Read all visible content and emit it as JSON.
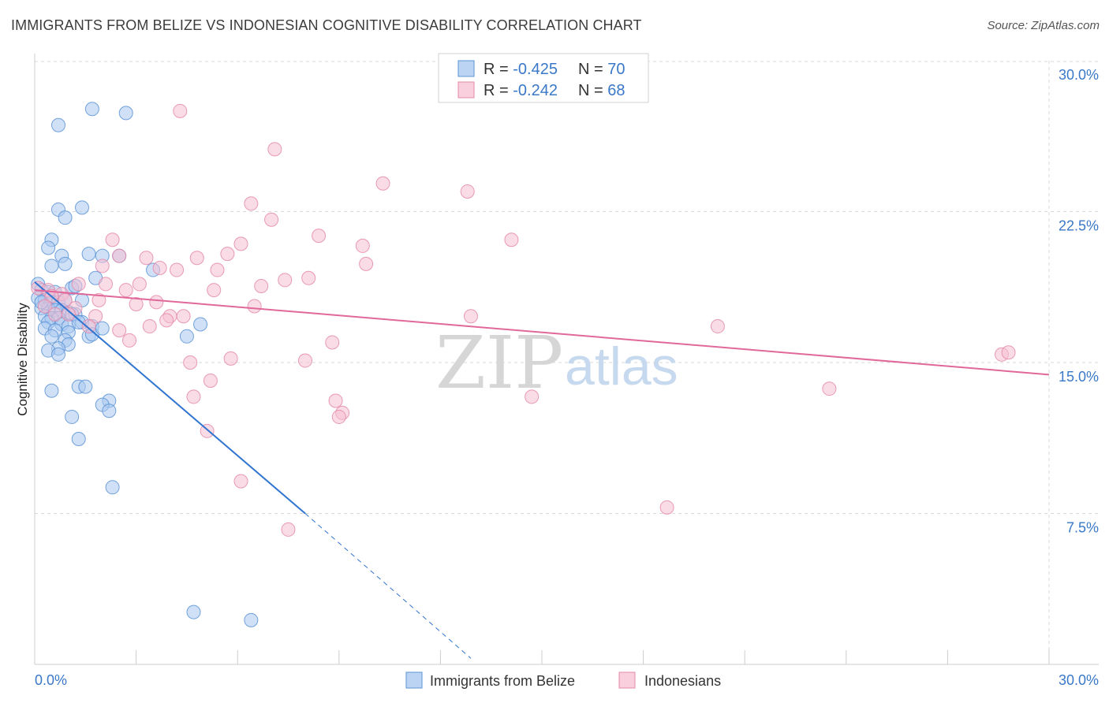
{
  "title": "IMMIGRANTS FROM BELIZE VS INDONESIAN COGNITIVE DISABILITY CORRELATION CHART",
  "source": "Source: ZipAtlas.com",
  "watermark": {
    "zip": "ZIP",
    "atlas": "atlas"
  },
  "colors": {
    "blue_fill": "#a9c8f0",
    "blue_stroke": "#5b93d6",
    "blue_line": "#2f74d0",
    "pink_fill": "#f6bfd1",
    "pink_stroke": "#e48aaa",
    "pink_line": "#e0689a",
    "grid": "#d9d9d9",
    "axis_text": "#3a78c8"
  },
  "legend": {
    "rows": [
      {
        "r_label": "R = ",
        "r_value": "-0.425",
        "n_label": "N = ",
        "n_value": "70"
      },
      {
        "r_label": "R = ",
        "r_value": "-0.242",
        "n_label": "N = ",
        "n_value": "68"
      }
    ]
  },
  "chart_data": {
    "type": "scatter",
    "ylabel": "Cognitive Disability",
    "xlim": [
      0,
      30
    ],
    "ylim": [
      0,
      30
    ],
    "x_tick_labels": [
      "0.0%",
      "30.0%"
    ],
    "y_ticks": [
      7.5,
      15.0,
      22.5,
      30.0
    ],
    "y_tick_labels": [
      "7.5%",
      "15.0%",
      "22.5%",
      "30.0%"
    ],
    "grid": true,
    "series": [
      {
        "name": "Immigrants from Belize",
        "r": -0.425,
        "n": 70,
        "trend": {
          "x0": 0.0,
          "y0": 19.0,
          "x1": 8.0,
          "y1": 7.5,
          "dash_to_x": 12.9,
          "dash_to_y": 0.3
        },
        "points": [
          [
            1.7,
            27.6
          ],
          [
            0.7,
            26.8
          ],
          [
            2.7,
            27.4
          ],
          [
            0.7,
            22.6
          ],
          [
            1.4,
            22.7
          ],
          [
            0.9,
            22.2
          ],
          [
            0.5,
            21.1
          ],
          [
            0.4,
            20.7
          ],
          [
            1.6,
            20.4
          ],
          [
            0.8,
            20.3
          ],
          [
            2.0,
            20.3
          ],
          [
            2.5,
            20.3
          ],
          [
            0.5,
            19.8
          ],
          [
            0.9,
            19.9
          ],
          [
            3.5,
            19.6
          ],
          [
            1.8,
            19.2
          ],
          [
            0.1,
            18.9
          ],
          [
            0.2,
            18.6
          ],
          [
            0.4,
            18.5
          ],
          [
            0.6,
            18.5
          ],
          [
            1.1,
            18.7
          ],
          [
            1.2,
            18.8
          ],
          [
            0.1,
            18.2
          ],
          [
            0.3,
            18.1
          ],
          [
            0.5,
            18.0
          ],
          [
            0.7,
            18.0
          ],
          [
            0.9,
            18.1
          ],
          [
            1.4,
            18.1
          ],
          [
            0.2,
            17.7
          ],
          [
            0.4,
            17.7
          ],
          [
            0.6,
            17.6
          ],
          [
            0.8,
            17.6
          ],
          [
            1.0,
            17.5
          ],
          [
            1.2,
            17.4
          ],
          [
            0.3,
            17.3
          ],
          [
            0.5,
            17.2
          ],
          [
            0.7,
            17.2
          ],
          [
            1.1,
            17.4
          ],
          [
            0.4,
            17.0
          ],
          [
            0.8,
            16.9
          ],
          [
            1.0,
            16.8
          ],
          [
            1.4,
            17.0
          ],
          [
            1.7,
            16.8
          ],
          [
            0.3,
            16.7
          ],
          [
            0.6,
            16.6
          ],
          [
            1.0,
            16.5
          ],
          [
            1.6,
            16.3
          ],
          [
            1.7,
            16.4
          ],
          [
            0.5,
            16.3
          ],
          [
            0.9,
            16.1
          ],
          [
            1.0,
            15.9
          ],
          [
            0.7,
            15.7
          ],
          [
            0.4,
            15.6
          ],
          [
            0.7,
            15.4
          ],
          [
            4.5,
            16.3
          ],
          [
            4.9,
            16.9
          ],
          [
            2.0,
            16.7
          ],
          [
            0.5,
            13.6
          ],
          [
            1.3,
            13.8
          ],
          [
            1.5,
            13.8
          ],
          [
            2.2,
            13.1
          ],
          [
            2.0,
            12.9
          ],
          [
            2.2,
            12.6
          ],
          [
            1.1,
            12.3
          ],
          [
            1.3,
            11.2
          ],
          [
            2.3,
            8.8
          ],
          [
            4.7,
            2.6
          ],
          [
            6.4,
            2.2
          ],
          [
            1.3,
            17.0
          ],
          [
            0.2,
            18.0
          ]
        ]
      },
      {
        "name": "Indonesians",
        "r": -0.242,
        "n": 68,
        "trend": {
          "x0": 0.0,
          "y0": 18.6,
          "x1": 30.0,
          "y1": 14.4
        },
        "points": [
          [
            4.3,
            27.5
          ],
          [
            7.1,
            25.6
          ],
          [
            10.3,
            23.9
          ],
          [
            12.8,
            23.5
          ],
          [
            6.4,
            22.9
          ],
          [
            7.0,
            22.1
          ],
          [
            8.4,
            21.3
          ],
          [
            14.1,
            21.1
          ],
          [
            2.3,
            21.1
          ],
          [
            6.1,
            20.9
          ],
          [
            9.7,
            20.8
          ],
          [
            5.7,
            20.4
          ],
          [
            3.3,
            20.2
          ],
          [
            4.8,
            20.2
          ],
          [
            2.5,
            20.3
          ],
          [
            9.8,
            19.9
          ],
          [
            2.0,
            19.8
          ],
          [
            3.7,
            19.7
          ],
          [
            4.2,
            19.6
          ],
          [
            5.4,
            19.6
          ],
          [
            7.4,
            19.1
          ],
          [
            8.1,
            19.2
          ],
          [
            1.3,
            18.9
          ],
          [
            2.1,
            18.9
          ],
          [
            3.1,
            18.9
          ],
          [
            6.7,
            18.8
          ],
          [
            5.3,
            18.6
          ],
          [
            0.1,
            18.7
          ],
          [
            0.4,
            18.6
          ],
          [
            0.8,
            18.4
          ],
          [
            2.7,
            18.6
          ],
          [
            0.5,
            18.3
          ],
          [
            0.9,
            18.1
          ],
          [
            1.9,
            18.1
          ],
          [
            3.0,
            17.9
          ],
          [
            3.6,
            18.0
          ],
          [
            6.5,
            17.8
          ],
          [
            0.3,
            17.8
          ],
          [
            1.2,
            17.7
          ],
          [
            1.0,
            17.4
          ],
          [
            0.6,
            17.4
          ],
          [
            1.8,
            17.3
          ],
          [
            4.0,
            17.3
          ],
          [
            4.4,
            17.3
          ],
          [
            12.9,
            17.3
          ],
          [
            3.9,
            17.1
          ],
          [
            1.6,
            16.8
          ],
          [
            3.4,
            16.8
          ],
          [
            2.5,
            16.6
          ],
          [
            20.2,
            16.8
          ],
          [
            2.8,
            16.1
          ],
          [
            8.8,
            16.0
          ],
          [
            4.6,
            15.0
          ],
          [
            5.8,
            15.2
          ],
          [
            8.0,
            15.1
          ],
          [
            28.6,
            15.4
          ],
          [
            28.8,
            15.5
          ],
          [
            5.2,
            14.1
          ],
          [
            23.5,
            13.7
          ],
          [
            4.7,
            13.3
          ],
          [
            14.7,
            13.3
          ],
          [
            8.9,
            13.1
          ],
          [
            9.1,
            12.5
          ],
          [
            9.0,
            12.3
          ],
          [
            5.1,
            11.6
          ],
          [
            6.1,
            9.1
          ],
          [
            18.7,
            7.8
          ],
          [
            7.5,
            6.7
          ]
        ]
      }
    ]
  }
}
